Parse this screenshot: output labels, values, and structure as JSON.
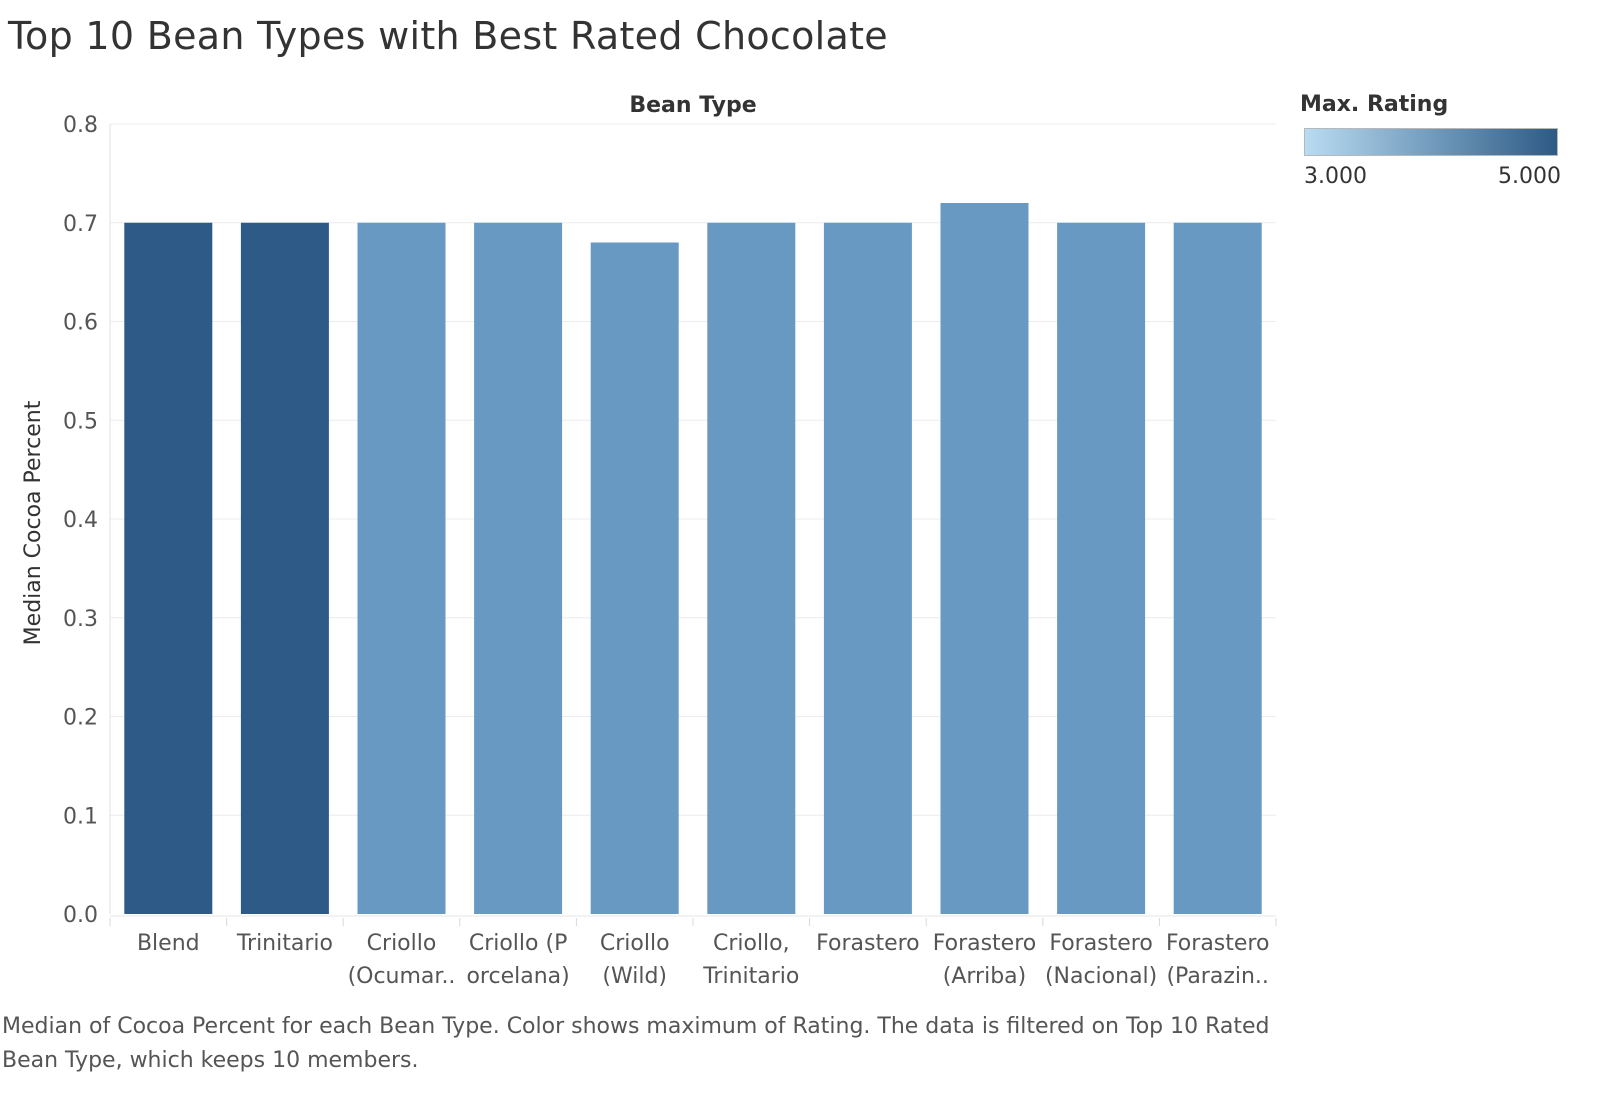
{
  "chart_data": {
    "type": "bar",
    "title": "Top 10 Bean Types with Best Rated Chocolate",
    "header": "Bean Type",
    "xlabel": "Bean Type",
    "ylabel": "Median Cocoa Percent",
    "ylim": [
      0,
      0.8
    ],
    "yticks": [
      "0.0",
      "0.1",
      "0.2",
      "0.3",
      "0.4",
      "0.5",
      "0.6",
      "0.7",
      "0.8"
    ],
    "ytick_values": [
      0,
      0.1,
      0.2,
      0.3,
      0.4,
      0.5,
      0.6,
      0.7,
      0.8
    ],
    "grid": true,
    "categories": [
      {
        "line1": "Blend",
        "line2": ""
      },
      {
        "line1": "Trinitario",
        "line2": ""
      },
      {
        "line1": "Criollo",
        "line2": "(Ocumar.."
      },
      {
        "line1": "Criollo (P",
        "line2": "orcelana)"
      },
      {
        "line1": "Criollo",
        "line2": "(Wild)"
      },
      {
        "line1": "Criollo,",
        "line2": "Trinitario"
      },
      {
        "line1": "Forastero",
        "line2": ""
      },
      {
        "line1": "Forastero",
        "line2": "(Arriba)"
      },
      {
        "line1": "Forastero",
        "line2": "(Nacional)"
      },
      {
        "line1": "Forastero",
        "line2": "(Parazin.."
      }
    ],
    "values": [
      0.7,
      0.7,
      0.7,
      0.7,
      0.68,
      0.7,
      0.7,
      0.72,
      0.7,
      0.7
    ],
    "colors": [
      "#2d5a86",
      "#2d5a86",
      "#6899c2",
      "#6899c2",
      "#6899c2",
      "#6899c2",
      "#6899c2",
      "#6899c2",
      "#6899c2",
      "#6899c2"
    ],
    "legend": {
      "title": "Max. Rating",
      "min_label": "3.000",
      "max_label": "5.000",
      "color_low": "#b9dcf2",
      "color_high": "#2d5a86",
      "placement": "top-right"
    }
  },
  "caption": "Median of Cocoa Percent for each Bean Type.  Color shows maximum of  Rating. The data is filtered on Top 10 Rated Bean Type, which keeps 10 members."
}
